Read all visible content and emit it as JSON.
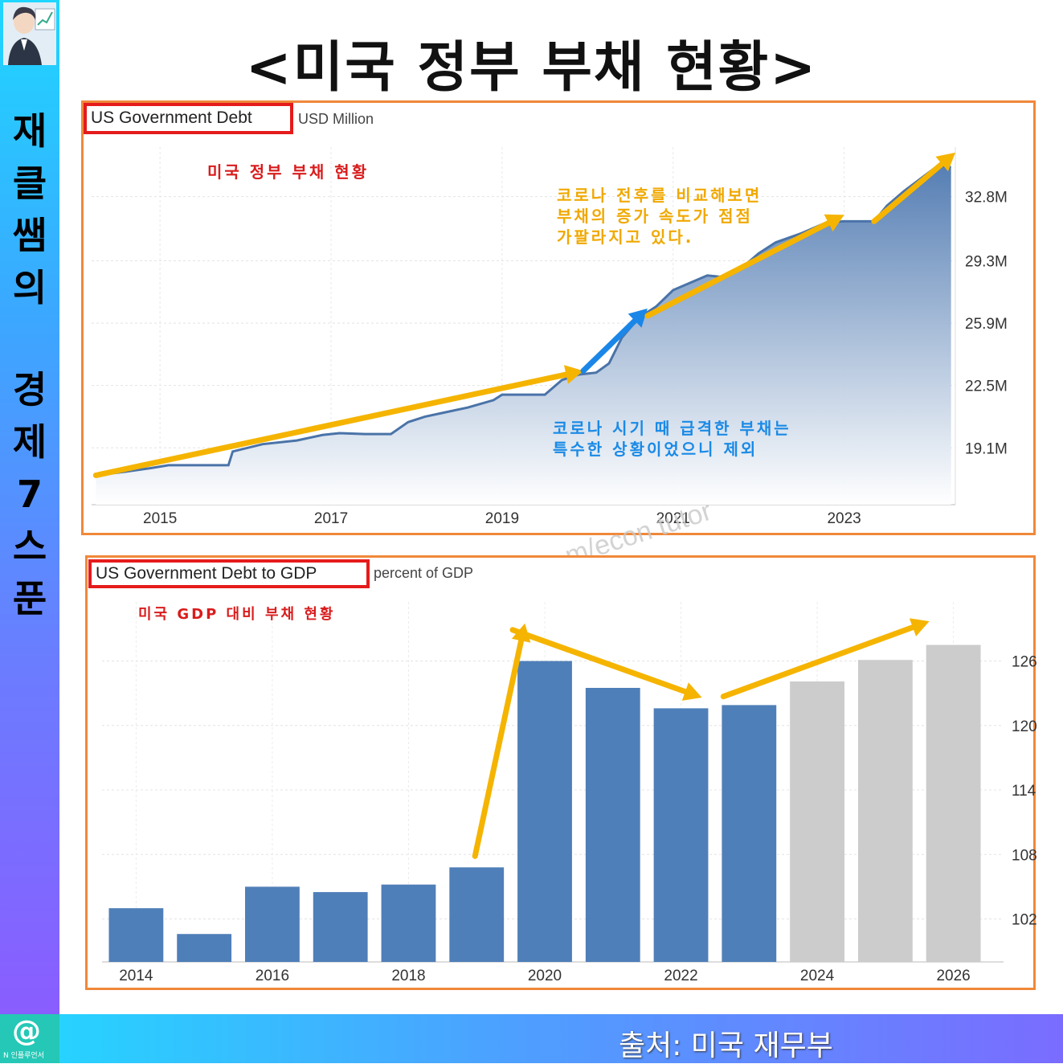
{
  "title": "<미국 정부 부채 현황>",
  "sidebar": {
    "text": "재클쌤의경제7스푼"
  },
  "footer": {
    "source": "출처: 미국 재무부",
    "logo_text": "N 인플루언서"
  },
  "watermark": "m/econ tutor",
  "colors": {
    "line": "#4a73a8",
    "bar_actual": "#4f7fb8",
    "bar_forecast": "#cccccc",
    "arrow_yellow": "#f5b400",
    "arrow_blue": "#1a86e8",
    "frame": "#f0883a",
    "tag_border": "#e51b1b"
  },
  "chart1": {
    "tag": "US Government Debt",
    "unit": "USD Million",
    "note_red": "미국 정부 부채 현황",
    "note_yellow": [
      "코로나 전후를 비교해보면",
      "부채의 증가 속도가 점점",
      "가팔라지고 있다."
    ],
    "note_blue": [
      "코로나 시기 때 급격한 부채는",
      "특수한 상황이었으니 제외"
    ]
  },
  "chart2": {
    "tag": "US Government Debt to GDP",
    "unit": "percent of GDP",
    "note_red": "미국 GDP 대비 부채 현황"
  },
  "chart_data": [
    {
      "type": "area",
      "title": "US Government Debt",
      "ylabel": "USD Million",
      "x_ticks": [
        "2015",
        "2017",
        "2019",
        "2021",
        "2023"
      ],
      "y_ticks": [
        "19.1M",
        "22.5M",
        "25.9M",
        "29.3M",
        "32.8M"
      ],
      "ylim": [
        16.0,
        35.5
      ],
      "xlim": [
        2014.2,
        2024.3
      ],
      "grid": true,
      "points": [
        [
          2014.25,
          17.6
        ],
        [
          2014.6,
          17.8
        ],
        [
          2014.9,
          18.0
        ],
        [
          2015.1,
          18.15
        ],
        [
          2015.4,
          18.15
        ],
        [
          2015.8,
          18.15
        ],
        [
          2015.85,
          18.9
        ],
        [
          2016.2,
          19.3
        ],
        [
          2016.6,
          19.5
        ],
        [
          2016.9,
          19.8
        ],
        [
          2017.1,
          19.9
        ],
        [
          2017.4,
          19.85
        ],
        [
          2017.7,
          19.85
        ],
        [
          2017.9,
          20.5
        ],
        [
          2018.1,
          20.8
        ],
        [
          2018.3,
          21.0
        ],
        [
          2018.6,
          21.3
        ],
        [
          2018.9,
          21.7
        ],
        [
          2019.0,
          22.0
        ],
        [
          2019.2,
          22.0
        ],
        [
          2019.5,
          22.0
        ],
        [
          2019.7,
          22.8
        ],
        [
          2019.9,
          23.1
        ],
        [
          2020.1,
          23.2
        ],
        [
          2020.25,
          23.7
        ],
        [
          2020.4,
          25.1
        ],
        [
          2020.6,
          26.2
        ],
        [
          2020.8,
          26.8
        ],
        [
          2021.0,
          27.7
        ],
        [
          2021.2,
          28.1
        ],
        [
          2021.4,
          28.5
        ],
        [
          2021.6,
          28.4
        ],
        [
          2021.8,
          28.9
        ],
        [
          2022.0,
          29.7
        ],
        [
          2022.2,
          30.3
        ],
        [
          2022.5,
          30.8
        ],
        [
          2022.8,
          31.4
        ],
        [
          2023.0,
          31.45
        ],
        [
          2023.35,
          31.45
        ],
        [
          2023.5,
          32.3
        ],
        [
          2023.7,
          33.1
        ],
        [
          2023.9,
          33.8
        ],
        [
          2024.1,
          34.5
        ],
        [
          2024.25,
          34.4
        ]
      ]
    },
    {
      "type": "bar",
      "title": "US Government Debt to GDP",
      "ylabel": "percent of GDP",
      "categories": [
        "2014",
        "2015",
        "2016",
        "2017",
        "2018",
        "2019",
        "2020",
        "2021",
        "2022",
        "2023",
        "2024",
        "2025",
        "2026"
      ],
      "x_tick_labels": [
        "2014",
        "2016",
        "2018",
        "2020",
        "2022",
        "2024",
        "2026"
      ],
      "values": [
        103.0,
        100.6,
        105.0,
        104.5,
        105.2,
        106.8,
        126.0,
        123.5,
        121.6,
        121.9,
        124.1,
        126.1,
        127.5
      ],
      "forecast": [
        false,
        false,
        false,
        false,
        false,
        false,
        false,
        false,
        false,
        false,
        true,
        true,
        true
      ],
      "y_ticks": [
        102,
        108,
        114,
        120,
        126
      ],
      "ylim": [
        98.0,
        131.5
      ],
      "grid": true
    }
  ]
}
